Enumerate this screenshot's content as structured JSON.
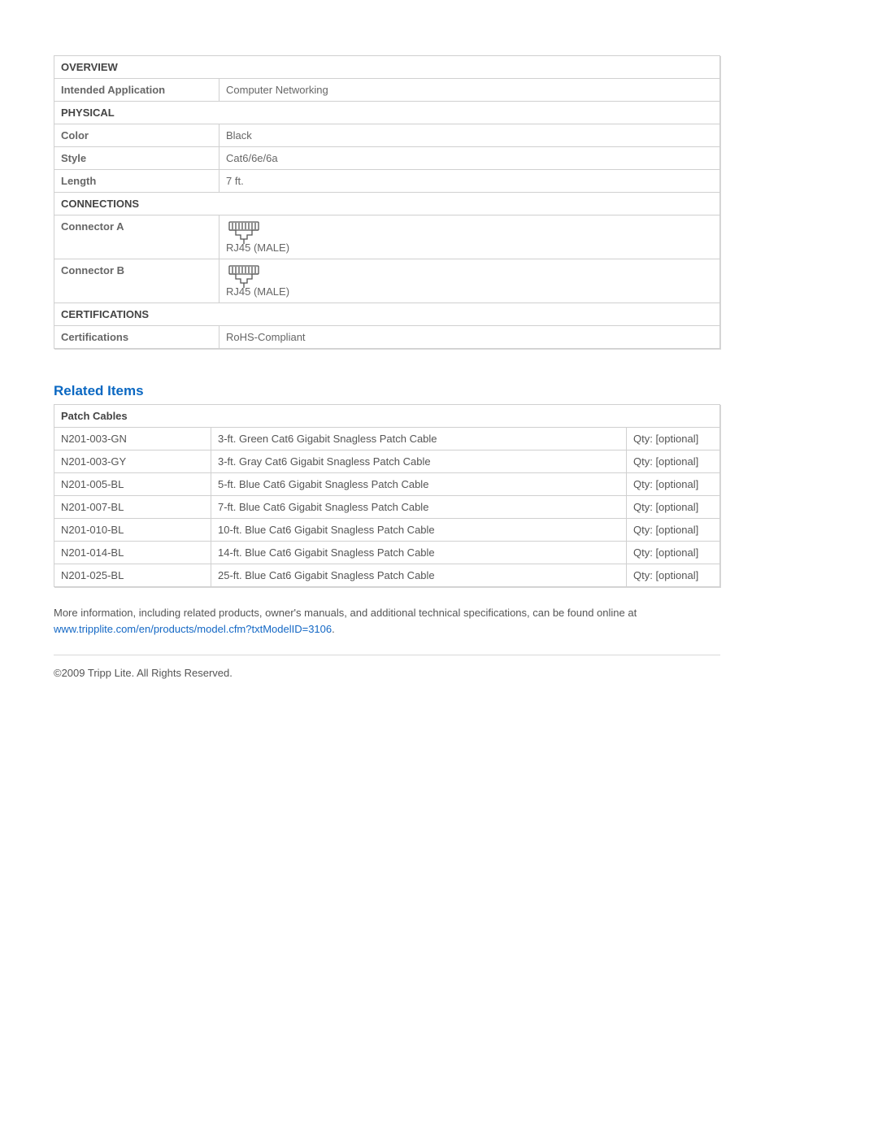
{
  "colors": {
    "link": "#1468c5",
    "heading": "#0b68c2",
    "border": "#d0d0d0",
    "text": "#555555",
    "bold_text": "#444444"
  },
  "specs": {
    "sections": [
      {
        "title": "OVERVIEW",
        "rows": [
          {
            "label": "Intended Application",
            "value": "Computer Networking"
          }
        ]
      },
      {
        "title": "PHYSICAL",
        "rows": [
          {
            "label": "Color",
            "value": "Black"
          },
          {
            "label": "Style",
            "value": "Cat6/6e/6a"
          },
          {
            "label": "Length",
            "value": "7 ft."
          }
        ]
      },
      {
        "title": "CONNECTIONS",
        "rows": [
          {
            "label": "Connector A",
            "value": "RJ45 (MALE)",
            "icon": "rj45"
          },
          {
            "label": "Connector B",
            "value": "RJ45 (MALE)",
            "icon": "rj45"
          }
        ]
      },
      {
        "title": "CERTIFICATIONS",
        "rows": [
          {
            "label": "Certifications",
            "value": "RoHS-Compliant"
          }
        ]
      }
    ]
  },
  "related": {
    "heading": "Related Items",
    "group_title": "Patch Cables",
    "qty_label": "Qty: [optional]",
    "items": [
      {
        "sku": "N201-003-GN",
        "desc": "3-ft. Green Cat6 Gigabit Snagless Patch Cable"
      },
      {
        "sku": "N201-003-GY",
        "desc": "3-ft. Gray Cat6 Gigabit Snagless Patch Cable"
      },
      {
        "sku": "N201-005-BL",
        "desc": "5-ft. Blue Cat6 Gigabit Snagless Patch Cable"
      },
      {
        "sku": "N201-007-BL",
        "desc": "7-ft. Blue Cat6 Gigabit Snagless Patch Cable"
      },
      {
        "sku": "N201-010-BL",
        "desc": "10-ft. Blue Cat6 Gigabit Snagless Patch Cable"
      },
      {
        "sku": "N201-014-BL",
        "desc": "14-ft. Blue Cat6 Gigabit Snagless Patch Cable"
      },
      {
        "sku": "N201-025-BL",
        "desc": "25-ft. Blue Cat6 Gigabit Snagless Patch Cable"
      }
    ]
  },
  "more_info": {
    "text": "More information, including related products, owner's manuals, and additional technical specifications, can be found online at ",
    "link_text": "www.tripplite.com/en/products/model.cfm?txtModelID=3106",
    "suffix": "."
  },
  "copyright": "©2009 Tripp Lite.  All Rights Reserved."
}
